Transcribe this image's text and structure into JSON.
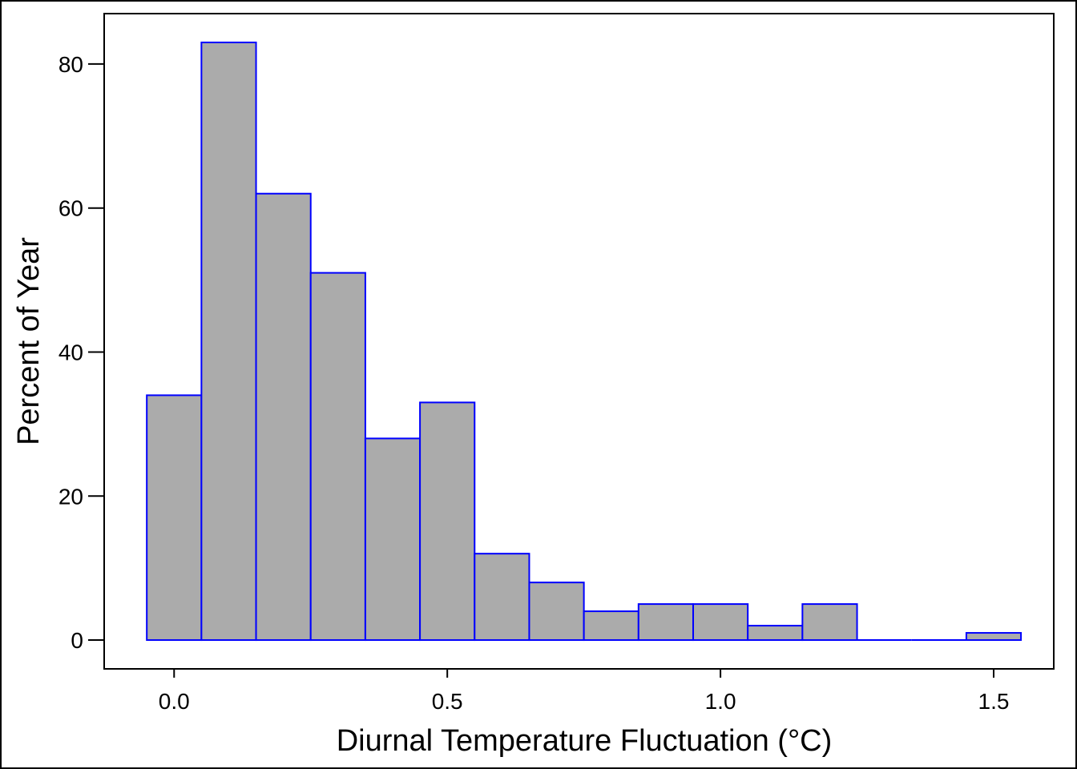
{
  "chart_data": {
    "type": "bar",
    "title": "",
    "xlabel": "Diurnal Temperature Fluctuation (°C)",
    "ylabel": "Percent of Year",
    "bin_width": 0.1,
    "bins": [
      {
        "center": 0.0,
        "value": 34
      },
      {
        "center": 0.1,
        "value": 83
      },
      {
        "center": 0.2,
        "value": 62
      },
      {
        "center": 0.3,
        "value": 51
      },
      {
        "center": 0.4,
        "value": 28
      },
      {
        "center": 0.5,
        "value": 33
      },
      {
        "center": 0.6,
        "value": 12
      },
      {
        "center": 0.7,
        "value": 8
      },
      {
        "center": 0.8,
        "value": 4
      },
      {
        "center": 0.9,
        "value": 5
      },
      {
        "center": 1.0,
        "value": 5
      },
      {
        "center": 1.1,
        "value": 2
      },
      {
        "center": 1.2,
        "value": 5
      },
      {
        "center": 1.3,
        "value": 0
      },
      {
        "center": 1.4,
        "value": 0
      },
      {
        "center": 1.5,
        "value": 1
      }
    ],
    "xlim": [
      -0.128,
      1.61
    ],
    "ylim": [
      -4,
      87
    ],
    "x_ticks": [
      {
        "value": 0.0,
        "label": "0.0"
      },
      {
        "value": 0.5,
        "label": "0.5"
      },
      {
        "value": 1.0,
        "label": "1.0"
      },
      {
        "value": 1.5,
        "label": "1.5"
      }
    ],
    "y_ticks": [
      {
        "value": 0,
        "label": "0"
      },
      {
        "value": 20,
        "label": "20"
      },
      {
        "value": 40,
        "label": "40"
      },
      {
        "value": 60,
        "label": "60"
      },
      {
        "value": 80,
        "label": "80"
      }
    ],
    "grid": false,
    "legend": "none",
    "colors": {
      "bar_fill": "#ababab",
      "bar_edge": "#0000ff",
      "axis": "#000000",
      "background": "#ffffff"
    }
  }
}
